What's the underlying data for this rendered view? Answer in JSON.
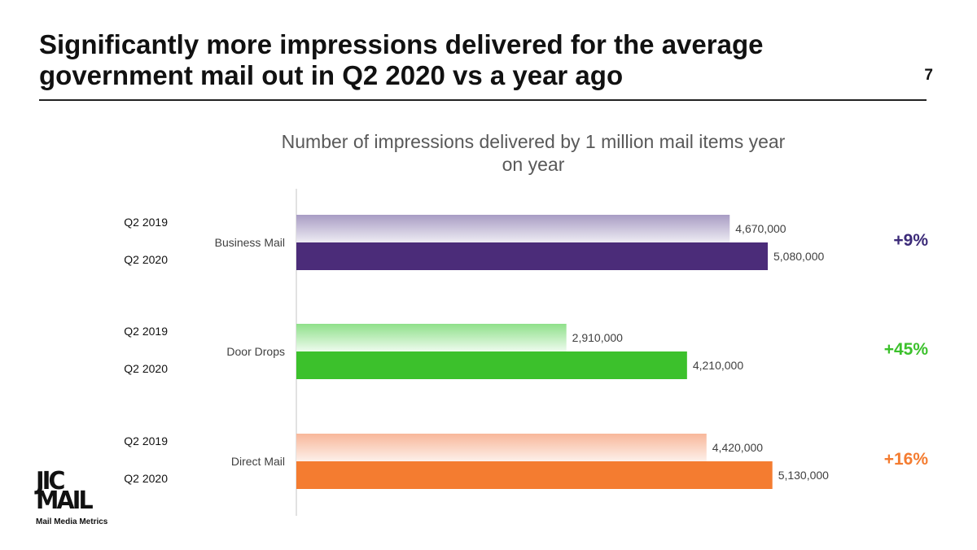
{
  "slide": {
    "title_line1": "Significantly more impressions delivered for the average",
    "title_line2": "government mail out in Q2 2020 vs a year ago",
    "page_number": "7"
  },
  "logo": {
    "line1": "JIC",
    "line2": "MAIL",
    "tagline": "Mail Media Metrics"
  },
  "chart_data": {
    "type": "bar",
    "orientation": "horizontal",
    "title": "Number of impressions delivered by 1 million mail items year on year",
    "title_lines": [
      "Number of impressions delivered by 1 million mail items year",
      "on year"
    ],
    "categories": [
      "Business Mail",
      "Door Drops",
      "Direct Mail"
    ],
    "series": [
      {
        "name": "Q2 2019",
        "values": [
          4670000,
          2910000,
          4420000
        ]
      },
      {
        "name": "Q2 2020",
        "values": [
          5080000,
          4210000,
          5130000
        ]
      }
    ],
    "data_labels": [
      [
        "4,670,000",
        "5,080,000"
      ],
      [
        "2,910,000",
        "4,210,000"
      ],
      [
        "4,420,000",
        "5,130,000"
      ]
    ],
    "changes": [
      "+9%",
      "+45%",
      "+16%"
    ],
    "colors": {
      "Business Mail": {
        "q2019_start": "#a89cc4",
        "q2019_end": "#eeecf3",
        "q2020": "#4b2c79",
        "change": "#3b2a78"
      },
      "Door Drops": {
        "q2019_start": "#8fe08a",
        "q2019_end": "#eefbee",
        "q2020": "#3cc12c",
        "change": "#3cc12c"
      },
      "Direct Mail": {
        "q2019_start": "#f8b79a",
        "q2019_end": "#fdf0ea",
        "q2020": "#f47c30",
        "change": "#f47c30"
      }
    },
    "xlim": [
      0,
      5500000
    ],
    "grid": false,
    "legend": "none"
  }
}
